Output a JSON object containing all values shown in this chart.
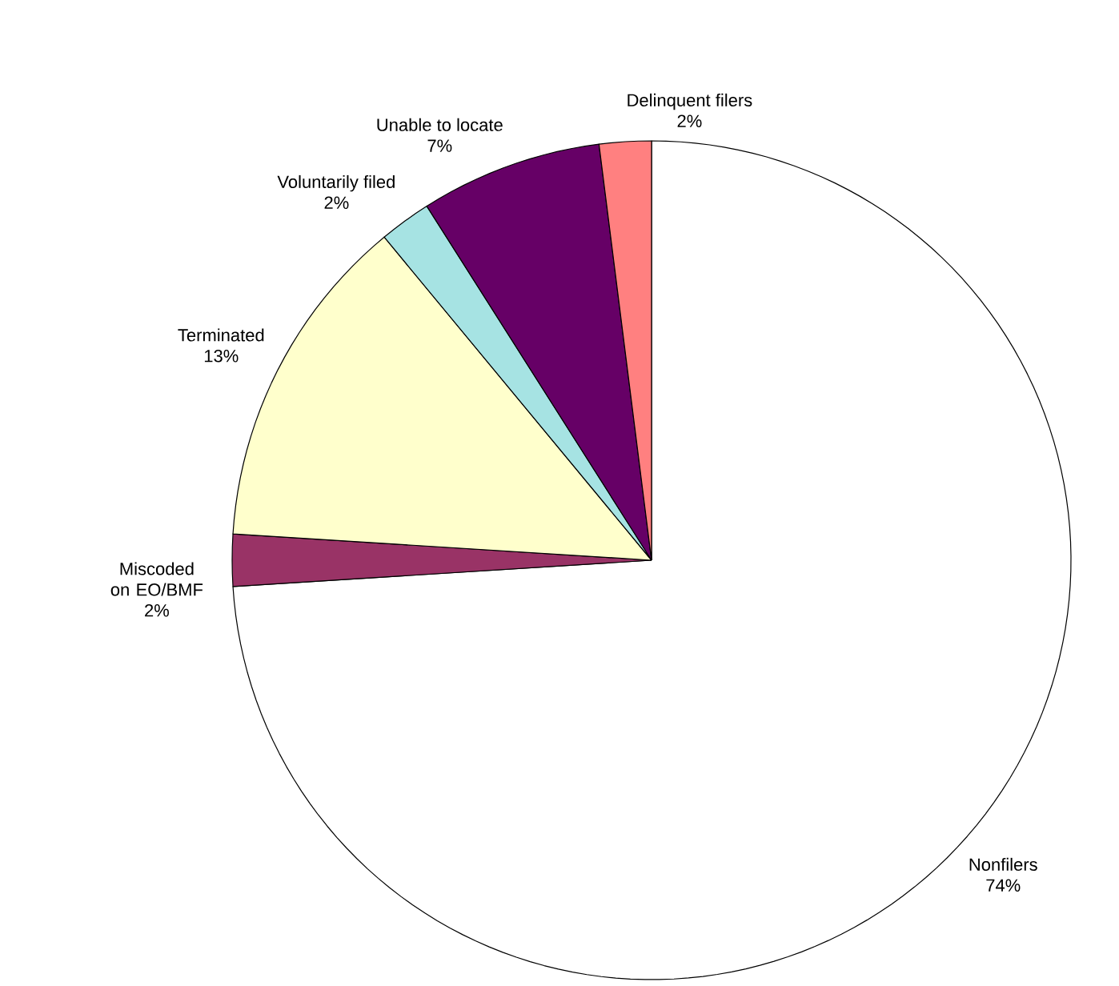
{
  "chart_data": {
    "type": "pie",
    "categories": [
      "Nonfilers",
      "Miscoded on EO/BMF",
      "Terminated",
      "Voluntarily filed",
      "Unable to locate",
      "Delinquent filers"
    ],
    "values": [
      74,
      2,
      13,
      2,
      7,
      2
    ],
    "value_labels": [
      "74%",
      "2%",
      "13%",
      "2%",
      "7%",
      "2%"
    ],
    "colors": [
      "#ffffff",
      "#993366",
      "#ffffcc",
      "#a6e3e3",
      "#660066",
      "#ff8080"
    ]
  }
}
